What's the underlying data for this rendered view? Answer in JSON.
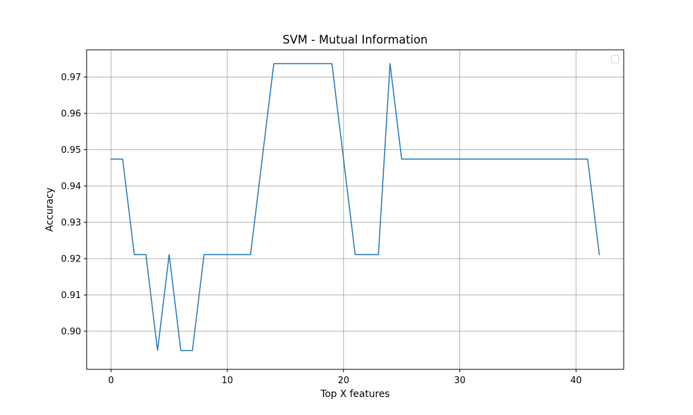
{
  "chart_data": {
    "type": "line",
    "title": "SVM - Mutual Information",
    "xlabel": "Top X features",
    "ylabel": "Accuracy",
    "xlim": [
      -2.1,
      44.1
    ],
    "ylim": [
      0.8895,
      0.9775
    ],
    "x_ticks": [
      0,
      10,
      20,
      30,
      40
    ],
    "y_ticks": [
      0.9,
      0.91,
      0.92,
      0.93,
      0.94,
      0.95,
      0.96,
      0.97
    ],
    "x_tick_labels": [
      "0",
      "10",
      "20",
      "30",
      "40"
    ],
    "y_tick_labels": [
      "0.90",
      "0.91",
      "0.92",
      "0.93",
      "0.94",
      "0.95",
      "0.96",
      "0.97"
    ],
    "grid": true,
    "legend": "upper right (empty)",
    "series_color": "#1f77b4",
    "series": [
      {
        "x": [
          0,
          1,
          2,
          3,
          4,
          5,
          6,
          7,
          8,
          9,
          10,
          11,
          12,
          13,
          14,
          15,
          16,
          17,
          18,
          19,
          20,
          21,
          22,
          23,
          24,
          25,
          26,
          27,
          28,
          29,
          30,
          31,
          32,
          33,
          34,
          35,
          36,
          37,
          38,
          39,
          40,
          41,
          42
        ],
        "values": [
          0.9474,
          0.9474,
          0.9211,
          0.9211,
          0.8947,
          0.9211,
          0.8947,
          0.8947,
          0.9211,
          0.9211,
          0.9211,
          0.9211,
          0.9211,
          0.9474,
          0.9737,
          0.9737,
          0.9737,
          0.9737,
          0.9737,
          0.9737,
          0.9474,
          0.9211,
          0.9211,
          0.9211,
          0.9737,
          0.9474,
          0.9474,
          0.9474,
          0.9474,
          0.9474,
          0.9474,
          0.9474,
          0.9474,
          0.9474,
          0.9474,
          0.9474,
          0.9474,
          0.9474,
          0.9474,
          0.9474,
          0.9474,
          0.9474,
          0.9211
        ]
      }
    ]
  }
}
